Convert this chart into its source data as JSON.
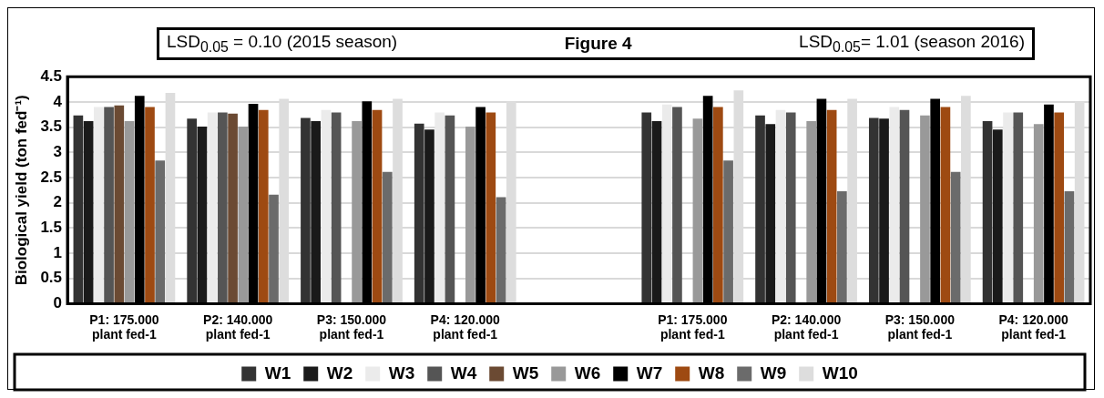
{
  "chart_data": {
    "type": "bar",
    "title": "Figure 4",
    "annotations": [
      "LSD$_{0.05}$ = 0.10 (2015 season)",
      "LSD$_{0.05}$= 1.01 (season 2016)"
    ],
    "ylabel": "Biological yield (ton fed⁻¹)",
    "categories": [
      "P1: 175.000\nplant fed-1",
      "P2: 140.000\nplant fed-1",
      "P3: 150.000\nplant fed-1",
      "P4: 120.000\nplant fed-1",
      null,
      "P1: 175.000\nplant fed-1",
      "P2: 140.000\nplant fed-1",
      "P3: 150.000\nplant fed-1",
      "P4: 120.000\nplant fed-1"
    ],
    "series": [
      {
        "name": "W1",
        "color": "#333333",
        "values": [
          3.73,
          3.67,
          3.68,
          3.57,
          null,
          3.79,
          3.73,
          3.68,
          3.62
        ]
      },
      {
        "name": "W2",
        "color": "#1a1a1a",
        "values": [
          3.62,
          3.51,
          3.62,
          3.45,
          null,
          3.62,
          3.56,
          3.67,
          3.45
        ]
      },
      {
        "name": "W3",
        "color": "#ebebeb",
        "values": [
          3.9,
          3.79,
          3.84,
          3.79,
          null,
          3.95,
          3.84,
          3.9,
          3.79
        ]
      },
      {
        "name": "W4",
        "color": "#555555",
        "values": [
          3.9,
          3.79,
          3.79,
          3.73,
          null,
          3.9,
          3.79,
          3.84,
          3.79
        ]
      },
      {
        "name": "W5",
        "color": "#6b4a33",
        "values": [
          3.93,
          3.77,
          null,
          null,
          null,
          null,
          null,
          null,
          null
        ]
      },
      {
        "name": "W6",
        "color": "#999999",
        "values": [
          3.62,
          3.51,
          3.62,
          3.51,
          null,
          3.67,
          3.62,
          3.73,
          3.56
        ]
      },
      {
        "name": "W7",
        "color": "#000000",
        "values": [
          4.12,
          3.96,
          4.01,
          3.9,
          null,
          4.12,
          4.06,
          4.06,
          3.95
        ]
      },
      {
        "name": "W8",
        "color": "#9e4a12",
        "values": [
          3.9,
          3.84,
          3.84,
          3.79,
          null,
          3.9,
          3.84,
          3.9,
          3.79
        ]
      },
      {
        "name": "W9",
        "color": "#6b6b6b",
        "values": [
          2.84,
          2.16,
          2.61,
          2.11,
          null,
          2.84,
          2.23,
          2.61,
          2.23
        ]
      },
      {
        "name": "W10",
        "color": "#dddddd",
        "values": [
          4.18,
          4.06,
          4.06,
          4.01,
          null,
          4.23,
          4.06,
          4.12,
          4.01
        ]
      }
    ],
    "ylim": [
      0,
      4.5
    ],
    "yticks": [
      0,
      0.5,
      1,
      1.5,
      2,
      2.5,
      3,
      3.5,
      4,
      4.5
    ],
    "grid": "y",
    "legend": "bottom"
  }
}
